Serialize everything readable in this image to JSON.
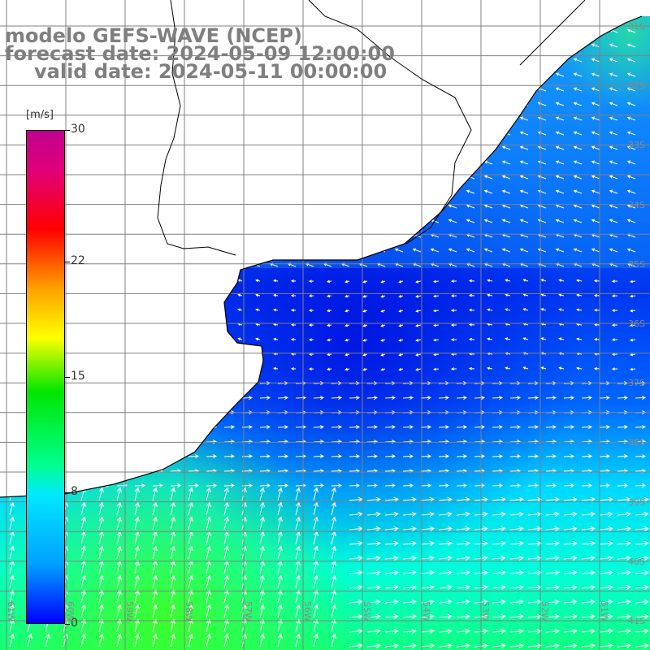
{
  "title": {
    "model": "modelo GEFS-WAVE (NCEP)",
    "forecast": "forecast date: 2024-05-09 12:00:00",
    "valid": "valid date: 2024-05-11 00:00:00"
  },
  "colorbar": {
    "units": "[m/s]",
    "ticks": [
      {
        "value": 30,
        "label": "30"
      },
      {
        "value": 22,
        "label": "22"
      },
      {
        "value": 15,
        "label": "15"
      },
      {
        "value": 8,
        "label": "8"
      },
      {
        "value": 0,
        "label": "0"
      }
    ],
    "range": [
      0,
      30
    ]
  },
  "lat_labels": [
    "31S",
    "32S",
    "33S",
    "34S",
    "35S",
    "36S",
    "37S",
    "38S",
    "39S",
    "40S",
    "41S"
  ],
  "lon_labels": [
    "61W",
    "60W",
    "59W",
    "58W",
    "57W",
    "56W",
    "55W",
    "54W",
    "53W",
    "52W",
    "51W"
  ],
  "colors": {
    "land": "#ffffff",
    "grid": "#808080",
    "coast": "#000000",
    "arrow": "#ffffff",
    "title": "#7f7f7f"
  }
}
